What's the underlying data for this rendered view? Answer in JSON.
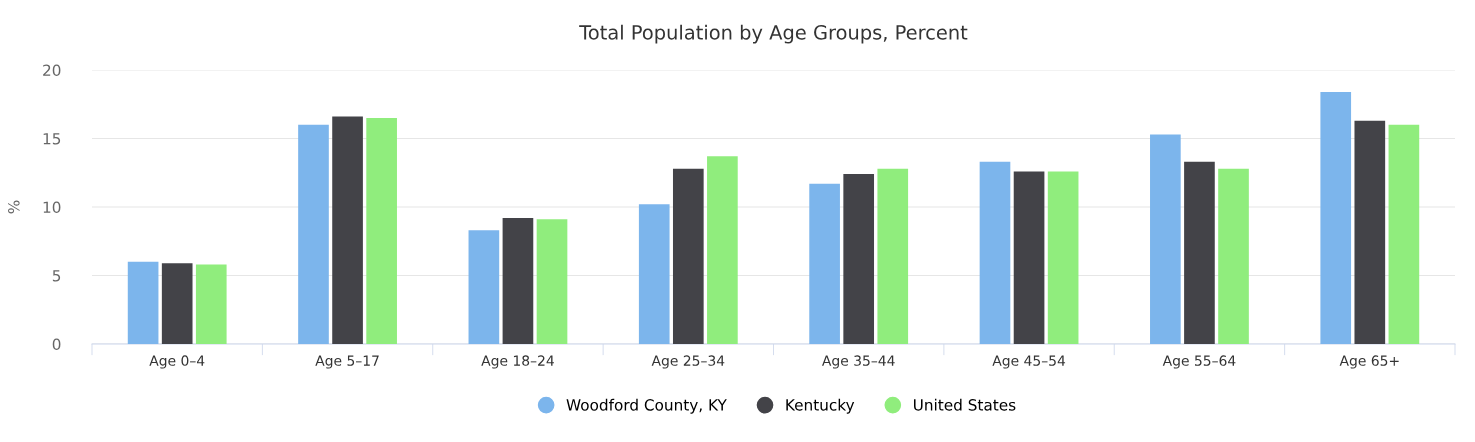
{
  "chart_data": {
    "type": "bar",
    "title": "Total Population by Age Groups, Percent",
    "ylabel": "%",
    "categories": [
      "Age 0–4",
      "Age 5–17",
      "Age 18–24",
      "Age 25–34",
      "Age 35–44",
      "Age 45–54",
      "Age 55–64",
      "Age 65+"
    ],
    "series": [
      {
        "name": "Woodford County, KY",
        "color": "#7cb5ec",
        "values": [
          6.0,
          16.0,
          8.3,
          10.2,
          11.7,
          13.3,
          15.3,
          18.4
        ]
      },
      {
        "name": "Kentucky",
        "color": "#434348",
        "values": [
          5.9,
          16.6,
          9.2,
          12.8,
          12.4,
          12.6,
          13.3,
          16.3
        ]
      },
      {
        "name": "United States",
        "color": "#90ed7d",
        "values": [
          5.8,
          16.5,
          9.1,
          13.7,
          12.8,
          12.6,
          12.8,
          16.0
        ]
      }
    ],
    "ylim": [
      0,
      20
    ],
    "yticks": [
      0,
      5,
      10,
      15,
      20
    ],
    "grid": "y",
    "legend": "bottom"
  }
}
